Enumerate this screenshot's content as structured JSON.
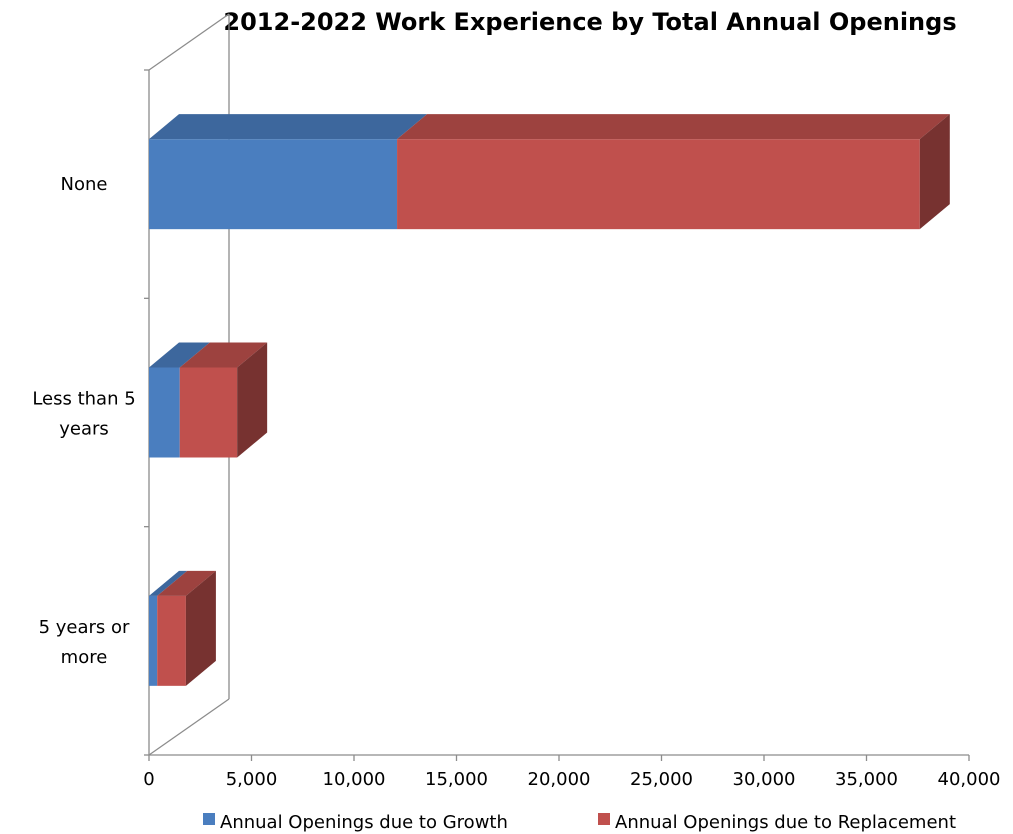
{
  "chart_data": {
    "type": "bar",
    "orientation": "horizontal",
    "stacked": true,
    "style": "3d",
    "title": "2012-2022 Work Experience by Total Annual Openings",
    "categories": [
      [
        "None"
      ],
      [
        "Less than 5",
        "years"
      ],
      [
        "5 years or",
        "more"
      ]
    ],
    "series": [
      {
        "name": "Annual Openings due to Growth",
        "color": "#4a7ebf",
        "values": [
          12100,
          1500,
          400
        ]
      },
      {
        "name": "Annual Openings due to Replacement",
        "color": "#c0504d",
        "values": [
          25500,
          2800,
          1400
        ]
      }
    ],
    "xlim": [
      0,
      40000
    ],
    "x_ticks": [
      "0",
      "5,000",
      "10,000",
      "15,000",
      "20,000",
      "25,000",
      "30,000",
      "35,000",
      "40,000"
    ],
    "grid": false,
    "legend": "bottom"
  }
}
